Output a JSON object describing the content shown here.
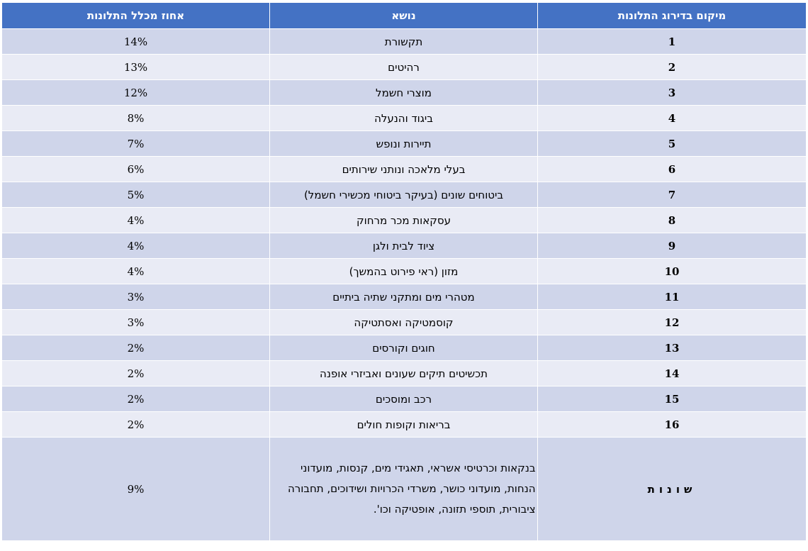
{
  "headers": {
    "percent": "אחוז מכלל התלונות",
    "topic": "נושא",
    "rank": "מיקום בדירוג התלונות"
  },
  "rows": [
    {
      "rank": "1",
      "topic": "תקשורת",
      "percent": "14%"
    },
    {
      "rank": "2",
      "topic": "רהיטים",
      "percent": "13%"
    },
    {
      "rank": "3",
      "topic": "מוצרי חשמל",
      "percent": "12%"
    },
    {
      "rank": "4",
      "topic": "ביגוד והנעלה",
      "percent": "8%"
    },
    {
      "rank": "5",
      "topic": "תיירות ונופש",
      "percent": "7%"
    },
    {
      "rank": "6",
      "topic": "בעלי מלאכה ונותני שירותים",
      "percent": "6%"
    },
    {
      "rank": "7",
      "topic": "ביטוחים שונים (בעיקר ביטוחי מכשירי חשמל)",
      "percent": "5%"
    },
    {
      "rank": "8",
      "topic": "עסקאות מכר מרחוק",
      "percent": "4%"
    },
    {
      "rank": "9",
      "topic": "ציוד לבית ולגן",
      "percent": "4%"
    },
    {
      "rank": "10",
      "topic": "מזון (ראי פירוט בהמשך)",
      "percent": "4%"
    },
    {
      "rank": "11",
      "topic": "מטהרי מים ומתקני שתיה ביתיים",
      "percent": "3%"
    },
    {
      "rank": "12",
      "topic": "קוסמטיקה ואסתטיקה",
      "percent": "3%"
    },
    {
      "rank": "13",
      "topic": "חוגים וקורסים",
      "percent": "2%"
    },
    {
      "rank": "14",
      "topic": "תכשיטים תיקים שעונים ואביזרי אופנה",
      "percent": "2%"
    },
    {
      "rank": "15",
      "topic": "רכב ומוסכים",
      "percent": "2%"
    },
    {
      "rank": "16",
      "topic": "בריאות וקופות חולים",
      "percent": "2%"
    }
  ],
  "misc": {
    "rank": "שונות",
    "topic": "בנקאות וכרטיסי אשראי, תאגידי מים, קנסות, מועדוני הנחות, מועדוני כושר, משרדי הכרויות ושידוכים, תחבורה ציבורית, תוספי תזונה, אופטיקה וכו'.",
    "percent": "9%"
  }
}
